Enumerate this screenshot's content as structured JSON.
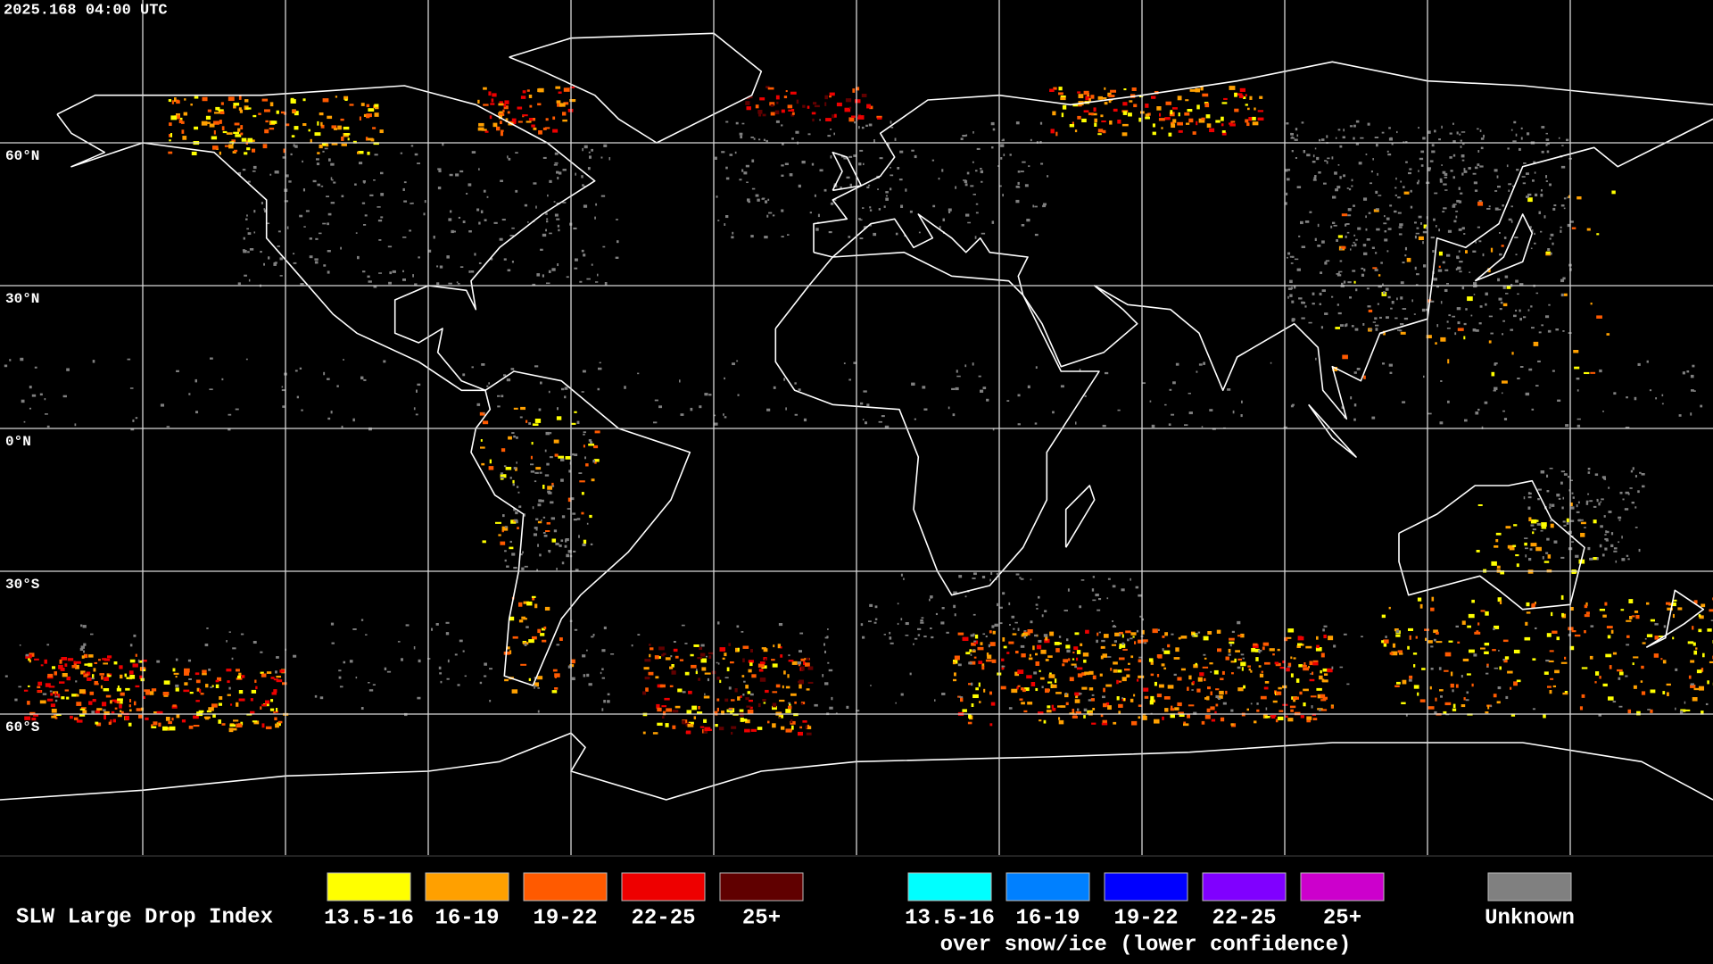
{
  "header": {
    "timestamp": "2025.168 04:00 UTC"
  },
  "map": {
    "latitude_labels": [
      "60°N",
      "30°N",
      "0°N",
      "30°S",
      "60°S"
    ]
  },
  "legend": {
    "title": "SLW Large Drop Index",
    "groups": [
      {
        "items": [
          {
            "label": "13.5-16",
            "color": "#ffff00"
          },
          {
            "label": "16-19",
            "color": "#ffa000"
          },
          {
            "label": "19-22",
            "color": "#ff5a00"
          },
          {
            "label": "22-25",
            "color": "#ee0000"
          },
          {
            "label": "25+",
            "color": "#600000"
          }
        ]
      },
      {
        "items": [
          {
            "label": "13.5-16",
            "color": "#00ffff"
          },
          {
            "label": "16-19",
            "color": "#0080ff"
          },
          {
            "label": "19-22",
            "color": "#0000ff"
          },
          {
            "label": "22-25",
            "color": "#8000ff"
          },
          {
            "label": "25+",
            "color": "#cc00cc"
          }
        ],
        "caption": "over snow/ice (lower confidence)"
      },
      {
        "items": [
          {
            "label": "Unknown",
            "color": "#808080"
          }
        ]
      }
    ]
  }
}
